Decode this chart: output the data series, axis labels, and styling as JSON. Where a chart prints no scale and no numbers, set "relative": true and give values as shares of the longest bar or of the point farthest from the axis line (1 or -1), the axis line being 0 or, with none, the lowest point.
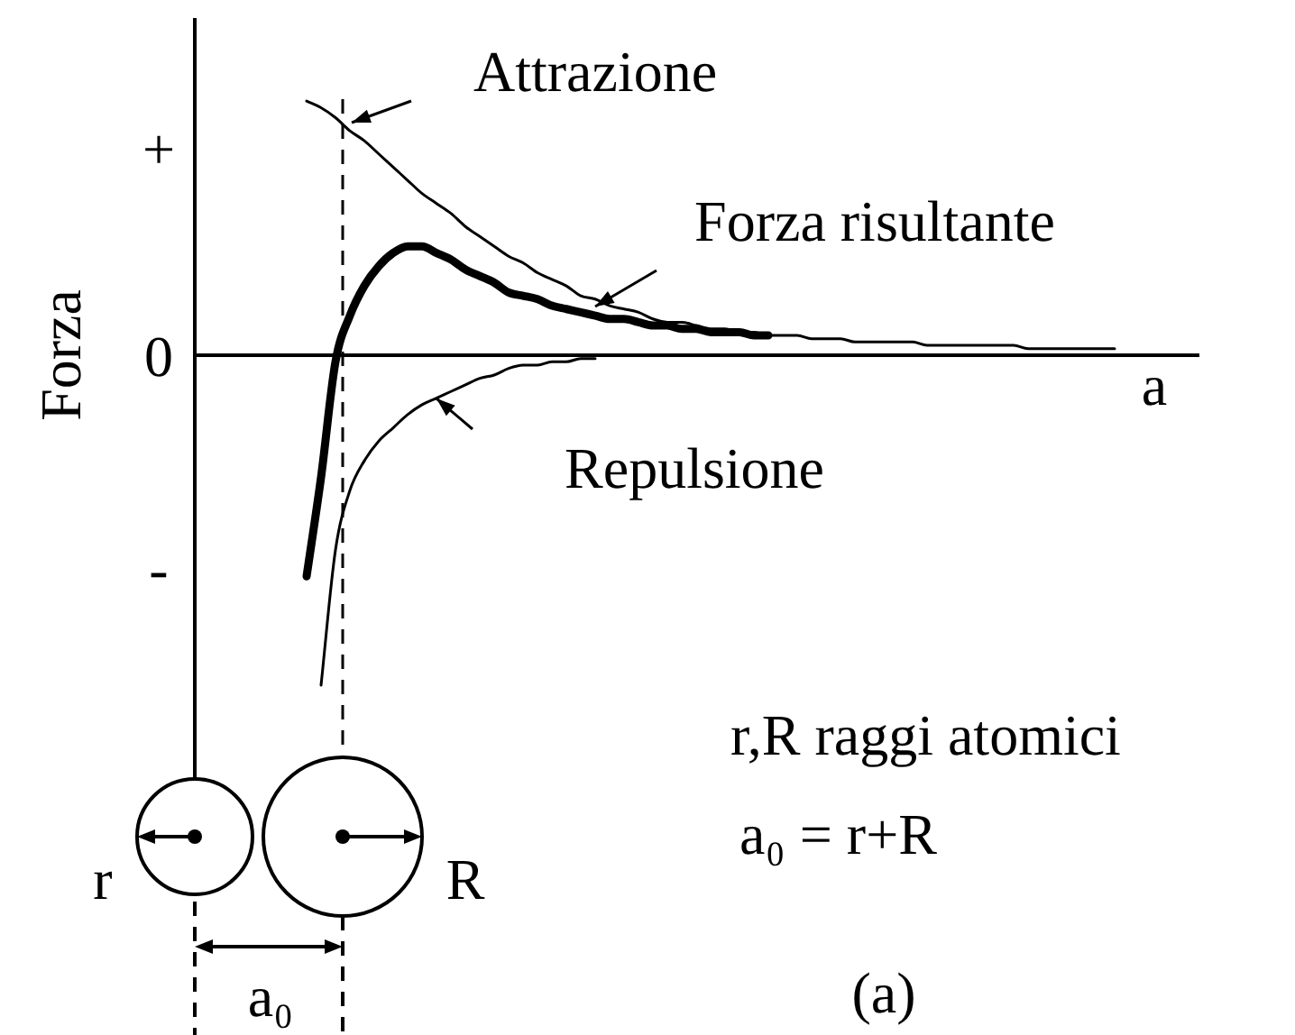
{
  "chart_data": {
    "type": "line",
    "relative": true,
    "marker": "none",
    "xlabel": "a",
    "ylabel": "Forza",
    "categories": [
      null,
      null,
      null,
      null,
      null,
      null,
      null,
      null,
      null,
      null,
      null,
      null,
      null,
      null,
      null,
      null,
      null,
      null,
      null,
      null,
      null,
      null,
      null,
      null,
      null,
      null,
      null,
      null,
      null,
      null,
      null,
      null,
      null,
      null,
      null,
      null,
      null,
      null,
      null,
      null,
      null,
      null,
      null,
      null,
      null,
      null,
      null,
      null,
      null,
      null,
      null,
      null,
      null,
      null,
      null,
      null,
      null
    ],
    "series": [
      {
        "name": "Attrazione",
        "color": "#000000",
        "values": [
          0.77,
          0.75,
          0.72,
          0.68,
          0.65,
          0.61,
          0.57,
          0.53,
          0.49,
          0.46,
          0.43,
          0.39,
          0.36,
          0.33,
          0.3,
          0.28,
          0.25,
          0.23,
          0.21,
          0.18,
          0.17,
          0.15,
          0.14,
          0.13,
          0.11,
          0.1,
          0.1,
          0.09,
          0.08,
          0.08,
          0.07,
          0.07,
          0.06,
          0.06,
          0.06,
          0.05,
          0.05,
          0.05,
          0.04,
          0.04,
          0.04,
          0.04,
          0.04,
          0.03,
          0.03,
          0.03,
          0.03,
          0.03,
          0.03,
          0.03,
          0.02,
          0.02,
          0.02,
          0.02,
          0.02,
          0.02,
          0.02
        ]
      },
      {
        "name": "Forza risultante",
        "color": "#000000",
        "values": [
          -0.67,
          -0.37,
          -0.02,
          0.12,
          0.21,
          0.27,
          0.31,
          0.33,
          0.33,
          0.31,
          0.29,
          0.26,
          0.24,
          0.22,
          0.19,
          0.18,
          0.17,
          0.15,
          0.14,
          0.13,
          0.12,
          0.11,
          0.11,
          0.1,
          0.09,
          0.09,
          0.08,
          0.08,
          0.07,
          0.07,
          0.07,
          0.06,
          0.06,
          null,
          null,
          null,
          null,
          null,
          null,
          null,
          null,
          null,
          null,
          null,
          null,
          null,
          null,
          null,
          null,
          null,
          null,
          null,
          null,
          null,
          null,
          null,
          null
        ]
      },
      {
        "name": "Repulsione",
        "color": "#000000",
        "values": [
          null,
          -1.0,
          -0.59,
          -0.41,
          -0.32,
          -0.26,
          -0.22,
          -0.18,
          -0.15,
          -0.13,
          -0.11,
          -0.09,
          -0.07,
          -0.06,
          -0.04,
          -0.03,
          -0.03,
          -0.02,
          -0.02,
          -0.01,
          -0.01,
          null,
          null,
          null,
          null,
          null,
          null,
          null,
          null,
          null,
          null,
          null,
          null,
          null,
          null,
          null,
          null,
          null,
          null,
          null,
          null,
          null,
          null,
          null,
          null,
          null,
          null,
          null,
          null,
          null,
          null,
          null,
          null,
          null,
          null,
          null,
          null
        ]
      }
    ],
    "annotations": [
      "+",
      "0",
      "-",
      "r,R raggi atomici",
      "a₀ = r+R",
      "r",
      "R",
      "a₀",
      "(a)"
    ]
  }
}
